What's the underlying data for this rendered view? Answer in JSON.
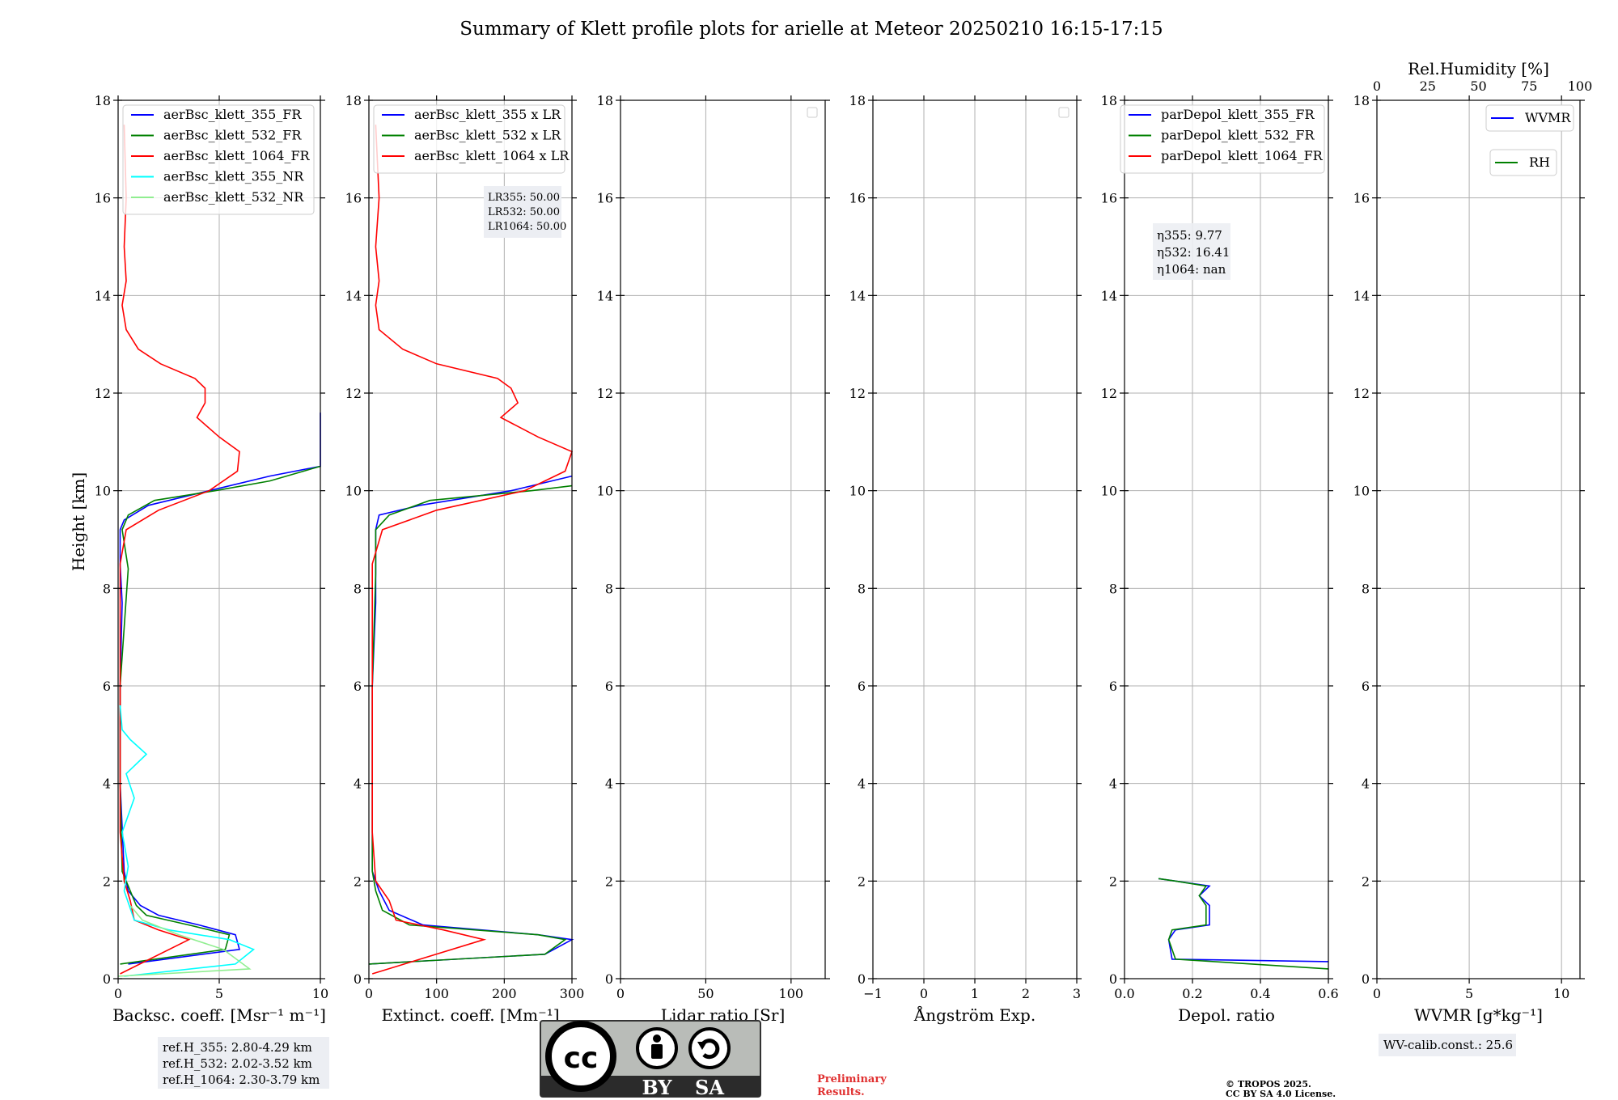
{
  "title": "Summary of Klett profile plots for arielle at Meteor 20250210 16:15-17:15",
  "colors": {
    "blue": "#0000ff",
    "green": "#008000",
    "red": "#ff0000",
    "cyan": "#00ffff",
    "lightgreen": "#90ee90",
    "grid": "#b0b0b0",
    "note_bg": "#eceef3"
  },
  "shared_ylabel": "Height [km]",
  "chart_data": [
    {
      "type": "line",
      "id": "backscatter",
      "xlabel": "Backsc. coeff. [Msr⁻¹ m⁻¹]",
      "xlim": [
        0,
        10
      ],
      "xticks": [
        0,
        5,
        10
      ],
      "ylim": [
        0,
        18
      ],
      "yticks": [
        0,
        2,
        4,
        6,
        8,
        10,
        12,
        14,
        16,
        18
      ],
      "ylabel": "Height [km]",
      "legend": [
        "aerBsc_klett_355_FR",
        "aerBsc_klett_532_FR",
        "aerBsc_klett_1064_FR",
        "aerBsc_klett_355_NR",
        "aerBsc_klett_532_NR"
      ],
      "legend_colors": [
        "blue",
        "green",
        "red",
        "cyan",
        "lightgreen"
      ],
      "legend_loc": "top-left",
      "series": [
        {
          "name": "aerBsc_klett_355_FR",
          "color": "blue",
          "x": [
            0.5,
            6.0,
            5.8,
            4.0,
            2.0,
            1.1,
            0.5,
            0.3,
            0.1,
            0.1,
            0.2,
            0.1,
            0.1,
            0.3,
            1.5,
            4.5,
            7.5,
            10.0,
            10.0,
            10.0
          ],
          "y": [
            0.3,
            0.6,
            0.9,
            1.1,
            1.3,
            1.5,
            1.8,
            2.2,
            4,
            6,
            7.7,
            8.5,
            9.2,
            9.4,
            9.7,
            10.0,
            10.3,
            10.5,
            11.2,
            11.6
          ]
        },
        {
          "name": "aerBsc_klett_532_FR",
          "color": "green",
          "x": [
            0.1,
            5.3,
            5.5,
            3.5,
            1.4,
            0.9,
            0.6,
            0.2,
            0.1,
            0.1,
            0.5,
            0.2,
            0.5,
            1.8,
            4.8,
            7.5,
            10.0
          ],
          "y": [
            0.3,
            0.6,
            0.9,
            1.1,
            1.3,
            1.5,
            1.8,
            2.2,
            4,
            6,
            8.4,
            9.2,
            9.5,
            9.8,
            10.0,
            10.2,
            10.5
          ]
        },
        {
          "name": "aerBsc_klett_1064_FR",
          "color": "red",
          "x": [
            0.1,
            3.5,
            2.0,
            0.8,
            0.6,
            0.3,
            0.1,
            0.1,
            0.1,
            0.1,
            0.4,
            2.0,
            4.5,
            5.9,
            6.0,
            5.0,
            3.9,
            4.3,
            4.3,
            3.8,
            2.1,
            1.0,
            0.4,
            0.2,
            0.4,
            0.3,
            0.4,
            0.3
          ],
          "y": [
            0.1,
            0.8,
            1.0,
            1.2,
            1.6,
            2.0,
            3,
            5,
            7,
            8.5,
            9.2,
            9.6,
            10.0,
            10.4,
            10.8,
            11.1,
            11.5,
            11.8,
            12.1,
            12.3,
            12.6,
            12.9,
            13.3,
            13.8,
            14.3,
            15,
            16,
            17.5
          ]
        },
        {
          "name": "aerBsc_klett_355_NR",
          "color": "cyan",
          "x": [
            0.3,
            5.8,
            6.7,
            5.5,
            2.5,
            0.8,
            0.3,
            0.5,
            0.2,
            0.8,
            0.4,
            1.4,
            0.6,
            0.2,
            0.1
          ],
          "y": [
            0.05,
            0.3,
            0.6,
            0.8,
            1.0,
            1.2,
            1.8,
            2.3,
            3.0,
            3.7,
            4.2,
            4.6,
            4.9,
            5.1,
            5.6
          ]
        },
        {
          "name": "aerBsc_klett_532_NR",
          "color": "lightgreen",
          "x": [
            0.0,
            6.5,
            5.2,
            3.0,
            1.2,
            0.6
          ],
          "y": [
            0.05,
            0.2,
            0.6,
            0.9,
            1.2,
            1.5
          ]
        }
      ],
      "annotation": {
        "lines": [
          "ref.H_355: 2.80-4.29 km",
          "ref.H_532: 2.02-3.52 km",
          "ref.H_1064: 2.30-3.79 km"
        ]
      }
    },
    {
      "type": "line",
      "id": "extinction",
      "xlabel": "Extinct. coeff. [Mm⁻¹]",
      "xlim": [
        0,
        300
      ],
      "xticks": [
        0,
        100,
        200,
        300
      ],
      "ylim": [
        0,
        18
      ],
      "yticks": [
        0,
        2,
        4,
        6,
        8,
        10,
        12,
        14,
        16,
        18
      ],
      "legend": [
        "aerBsc_klett_355 x LR",
        "aerBsc_klett_532 x LR",
        "aerBsc_klett_1064 x LR"
      ],
      "legend_colors": [
        "blue",
        "green",
        "red"
      ],
      "legend_loc": "top-left",
      "series": [
        {
          "name": "aerBsc_klett_355 x LR",
          "color": "blue",
          "x": [
            0,
            260,
            300,
            250,
            80,
            30,
            15,
            5,
            5,
            5,
            10,
            10,
            10,
            15,
            75,
            210,
            300
          ],
          "y": [
            0.3,
            0.5,
            0.8,
            0.9,
            1.1,
            1.4,
            1.8,
            2.2,
            4,
            6,
            7.7,
            8.5,
            9.2,
            9.5,
            9.7,
            10.0,
            10.3
          ]
        },
        {
          "name": "aerBsc_klett_532 x LR",
          "color": "green",
          "x": [
            0,
            260,
            290,
            250,
            60,
            20,
            10,
            5,
            5,
            5,
            10,
            10,
            30,
            90,
            240,
            300
          ],
          "y": [
            0.3,
            0.5,
            0.8,
            0.9,
            1.1,
            1.4,
            1.8,
            2.2,
            4,
            6,
            8.3,
            9.2,
            9.5,
            9.8,
            10.0,
            10.1
          ]
        },
        {
          "name": "aerBsc_klett_1064 x LR",
          "color": "red",
          "x": [
            5,
            170,
            110,
            40,
            30,
            10,
            5,
            5,
            5,
            5,
            20,
            100,
            230,
            290,
            300,
            250,
            195,
            220,
            210,
            190,
            100,
            50,
            15,
            10,
            15,
            10,
            15,
            10
          ],
          "y": [
            0.1,
            0.8,
            1.0,
            1.2,
            1.6,
            2.0,
            3,
            5,
            7,
            8.5,
            9.2,
            9.6,
            10.0,
            10.4,
            10.8,
            11.1,
            11.5,
            11.8,
            12.1,
            12.3,
            12.6,
            12.9,
            13.3,
            13.8,
            14.3,
            15,
            16,
            17.5
          ]
        }
      ],
      "annotation": {
        "lines": [
          "LR355: 50.00",
          "LR532: 50.00",
          "LR1064: 50.00"
        ]
      }
    },
    {
      "type": "line",
      "id": "lidar_ratio",
      "xlabel": "Lidar ratio [Sr]",
      "xlim": [
        0,
        120
      ],
      "xticks": [
        0,
        50,
        100
      ],
      "ylim": [
        0,
        18
      ],
      "yticks": [
        0,
        2,
        4,
        6,
        8,
        10,
        12,
        14,
        16,
        18
      ],
      "series": []
    },
    {
      "type": "line",
      "id": "angstrom",
      "xlabel": "Ångström Exp.",
      "xlim": [
        -1,
        3
      ],
      "xticks": [
        -1,
        0,
        1,
        2,
        3
      ],
      "ylim": [
        0,
        18
      ],
      "yticks": [
        0,
        2,
        4,
        6,
        8,
        10,
        12,
        14,
        16,
        18
      ],
      "series": []
    },
    {
      "type": "line",
      "id": "depol",
      "xlabel": "Depol. ratio",
      "xlim": [
        0,
        0.6
      ],
      "xticks": [
        0.0,
        0.2,
        0.4,
        0.6
      ],
      "ylim": [
        0,
        18
      ],
      "yticks": [
        0,
        2,
        4,
        6,
        8,
        10,
        12,
        14,
        16,
        18
      ],
      "legend": [
        "parDepol_klett_355_FR",
        "parDepol_klett_532_FR",
        "parDepol_klett_1064_FR"
      ],
      "legend_colors": [
        "blue",
        "green",
        "red"
      ],
      "legend_loc": "top-left",
      "series": [
        {
          "name": "parDepol_klett_355_FR",
          "color": "blue",
          "x": [
            0.6,
            0.14,
            0.13,
            0.15,
            0.25,
            0.25,
            0.22,
            0.25,
            0.15,
            0.1
          ],
          "y": [
            0.35,
            0.4,
            0.8,
            1.0,
            1.1,
            1.5,
            1.7,
            1.9,
            2.0,
            2.05
          ]
        },
        {
          "name": "parDepol_klett_532_FR",
          "color": "green",
          "x": [
            0.6,
            0.15,
            0.13,
            0.14,
            0.24,
            0.24,
            0.22,
            0.24,
            0.15,
            0.1
          ],
          "y": [
            0.2,
            0.4,
            0.8,
            1.0,
            1.1,
            1.5,
            1.7,
            1.9,
            2.0,
            2.05
          ]
        }
      ],
      "annotation": {
        "lines": [
          "η355: 9.77",
          "η532: 16.41",
          "η1064: nan"
        ]
      }
    },
    {
      "type": "line",
      "id": "wvmr",
      "xlabel": "WVMR [g*kg⁻¹]",
      "xlim": [
        0,
        11
      ],
      "xticks": [
        0,
        5,
        10
      ],
      "top_xlabel": "Rel.Humidity [%]",
      "top_xlim": [
        0,
        100
      ],
      "top_xticks": [
        0,
        25,
        50,
        75,
        100
      ],
      "ylim": [
        0,
        18
      ],
      "yticks": [
        0,
        2,
        4,
        6,
        8,
        10,
        12,
        14,
        16,
        18
      ],
      "legend": [
        "WVMR",
        "RH"
      ],
      "legend_colors": [
        "blue",
        "green"
      ],
      "legend_loc": "top-right",
      "series": [],
      "annotation": {
        "lines": [
          "WV-calib.const.: 25.6"
        ]
      }
    }
  ],
  "license": {
    "cc": "cc",
    "by": "BY",
    "sa": "SA"
  },
  "preliminary": [
    "Preliminary",
    "Results."
  ],
  "copyright": [
    "© TROPOS 2025.",
    "CC BY SA 4.0 License."
  ]
}
